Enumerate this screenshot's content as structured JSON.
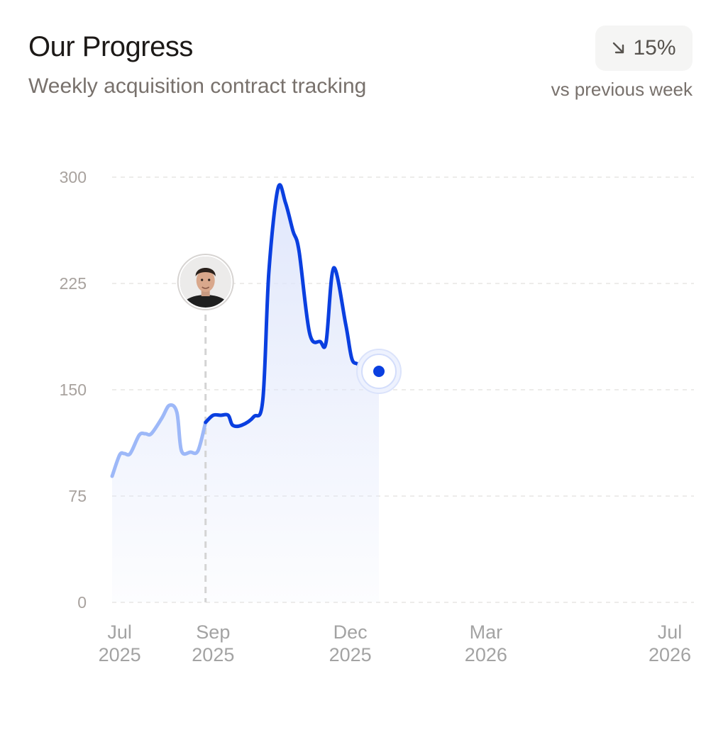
{
  "header": {
    "title": "Our Progress",
    "subtitle": "Weekly acquisition contract tracking"
  },
  "change_badge": {
    "icon": "arrow-down-right-icon",
    "value": "15%",
    "comparison_label": "vs previous week"
  },
  "colors": {
    "line_past": "#9db8f8",
    "line_current": "#0a3fe0",
    "area_fill": "#dfe6fb",
    "grid": "#e7e5e4",
    "marker_line": "#d4d4d4"
  },
  "chart_data": {
    "type": "line",
    "title": "",
    "xlabel": "",
    "ylabel": "",
    "ylim": [
      0,
      300
    ],
    "yticks": [
      "300",
      "225",
      "150",
      "75",
      "0"
    ],
    "xticks": [
      {
        "label": [
          "Jul",
          "2025"
        ],
        "date": "2025-07-01"
      },
      {
        "label": [
          "Sep",
          "2025"
        ],
        "date": "2025-09-01"
      },
      {
        "label": [
          "Dec",
          "2025"
        ],
        "date": "2025-12-01"
      },
      {
        "label": [
          "Mar",
          "2026"
        ],
        "date": "2026-03-01"
      },
      {
        "label": [
          "Jul",
          "2026"
        ],
        "date": "2026-07-01"
      }
    ],
    "xrange": [
      "2025-06-26",
      "2026-07-17"
    ],
    "grid": true,
    "milestone": {
      "date": "2025-08-27",
      "icon": "avatar"
    },
    "series": [
      {
        "segment": "before-milestone",
        "x": [
          "2025-06-26",
          "2025-07-01",
          "2025-07-04",
          "2025-07-08",
          "2025-07-14",
          "2025-07-18",
          "2025-07-22",
          "2025-07-29",
          "2025-08-03",
          "2025-08-08",
          "2025-08-11",
          "2025-08-17",
          "2025-08-22",
          "2025-08-27"
        ],
        "values": [
          89,
          104,
          105,
          105,
          118,
          119,
          119,
          130,
          139,
          134,
          107,
          106,
          107,
          127
        ]
      },
      {
        "segment": "after-milestone",
        "x": [
          "2025-08-27",
          "2025-09-01",
          "2025-09-06",
          "2025-09-11",
          "2025-09-14",
          "2025-09-20",
          "2025-09-28",
          "2025-10-04",
          "2025-10-08",
          "2025-10-14",
          "2025-10-19",
          "2025-10-24",
          "2025-10-28",
          "2025-11-04",
          "2025-11-11",
          "2025-11-15",
          "2025-11-20",
          "2025-11-28",
          "2025-12-02",
          "2025-12-06",
          "2025-12-10",
          "2025-12-17",
          "2025-12-20"
        ],
        "values": [
          127,
          132,
          132,
          132,
          125,
          125,
          131,
          143,
          233,
          292,
          282,
          262,
          248,
          190,
          184,
          184,
          236,
          196,
          172,
          168,
          163,
          163,
          163
        ]
      }
    ],
    "current_point": {
      "x": "2025-12-20",
      "value": 163
    }
  }
}
